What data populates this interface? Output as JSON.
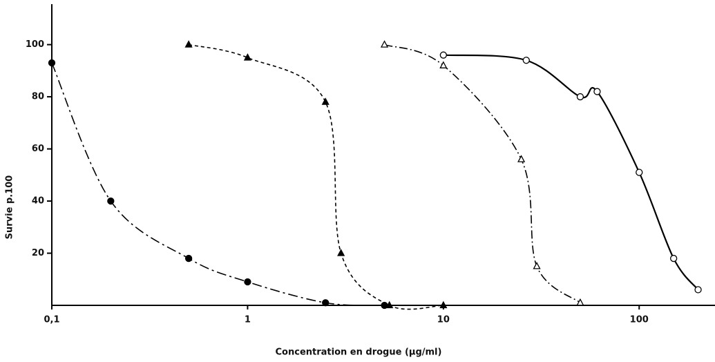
{
  "chart_data": {
    "type": "line",
    "x_label": "Concentration   en   drogue   (µg/ml)",
    "y_label": "Survie   p.100",
    "x_log": true,
    "xlim": [
      0.1,
      240
    ],
    "ylim": [
      0,
      115
    ],
    "xticks": [
      {
        "value": 0.1,
        "label": "0,1"
      },
      1,
      10,
      100
    ],
    "yticks": [
      20,
      40,
      60,
      80,
      100
    ],
    "series": [
      {
        "marker": "circle",
        "filled": true,
        "dash": "14 5 3 5",
        "color": "#000",
        "x": [
          0.1,
          0.2,
          0.5,
          1,
          2.5,
          5
        ],
        "values": [
          93,
          40,
          18,
          9,
          1,
          0
        ]
      },
      {
        "marker": "triangle",
        "filled": true,
        "dash": "5 4",
        "color": "#000",
        "x": [
          0.5,
          1,
          2.5,
          3,
          5.3,
          10
        ],
        "values": [
          100,
          95,
          78,
          20,
          0,
          0
        ]
      },
      {
        "marker": "triangle",
        "filled": false,
        "dash": "12 4 2 4",
        "color": "#000",
        "x": [
          5,
          10,
          25,
          30,
          50
        ],
        "values": [
          100,
          92,
          56,
          15,
          1
        ]
      },
      {
        "marker": "circle",
        "filled": false,
        "dash": "",
        "color": "#000",
        "x": [
          10,
          26.5,
          50,
          61,
          100,
          150,
          200
        ],
        "values": [
          96,
          94,
          80,
          82,
          51,
          18,
          6
        ]
      }
    ]
  }
}
